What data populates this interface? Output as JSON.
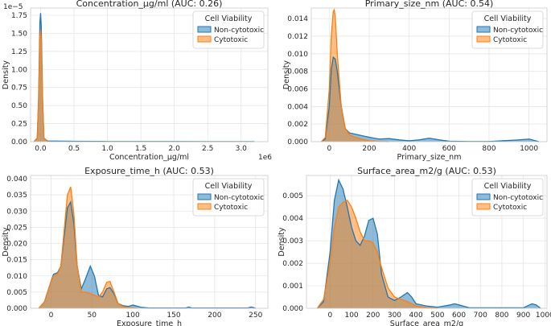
{
  "figure": {
    "legend_title": "Cell Viability",
    "colors": {
      "non_cytotoxic": "#1f77b4",
      "cytotoxic": "#ff7f0e",
      "overlap": "#8c8c8c"
    }
  },
  "chart_data": [
    {
      "type": "area",
      "title": "Concentration_µg/ml (AUC: 0.26)",
      "xlabel": "Concentration_µg/ml",
      "ylabel": "Density",
      "y_scale_label": "1e−5",
      "x_scale_label": "1e6",
      "xlim": [
        -150000,
        3400000
      ],
      "ylim": [
        0,
        1.85
      ],
      "x_ticks": [
        0,
        500000,
        1000000,
        1500000,
        2000000,
        2500000,
        3000000
      ],
      "x_tick_labels": [
        "0.0",
        "0.5",
        "1.0",
        "1.5",
        "2.0",
        "2.5",
        "3.0"
      ],
      "y_ticks": [
        0,
        0.25,
        0.5,
        0.75,
        1.0,
        1.25,
        1.5,
        1.75
      ],
      "y_tick_labels": [
        "0.00",
        "0.25",
        "0.50",
        "0.75",
        "1.00",
        "1.25",
        "1.50",
        "1.75"
      ],
      "legend": {
        "loc": "upper right",
        "entries": [
          "Non-cytotoxic",
          "Cytotoxic"
        ]
      },
      "grid": true,
      "series": [
        {
          "name": "Non-cytotoxic",
          "color": "#1f77b4",
          "x": [
            -100000,
            -50000,
            -30000,
            -10000,
            0,
            10000,
            30000,
            50000,
            100000,
            500000,
            1000000,
            2000000,
            3200000
          ],
          "y": [
            0,
            0.05,
            0.6,
            1.65,
            1.78,
            1.6,
            0.6,
            0.05,
            0.01,
            0.005,
            0.003,
            0.002,
            0.001
          ]
        },
        {
          "name": "Cytotoxic",
          "color": "#ff7f0e",
          "x": [
            -100000,
            -50000,
            -30000,
            -10000,
            0,
            10000,
            30000,
            50000,
            100000
          ],
          "y": [
            0,
            0.05,
            0.55,
            1.45,
            1.55,
            1.4,
            0.55,
            0.05,
            0
          ]
        }
      ]
    },
    {
      "type": "area",
      "title": "Primary_size_nm (AUC: 0.54)",
      "xlabel": "Primary_size_nm",
      "ylabel": "Density",
      "xlim": [
        -90,
        1090
      ],
      "ylim": [
        0,
        0.0152
      ],
      "x_ticks": [
        0,
        200,
        400,
        600,
        800,
        1000
      ],
      "x_tick_labels": [
        "0",
        "200",
        "400",
        "600",
        "800",
        "1000"
      ],
      "y_ticks": [
        0,
        0.002,
        0.004,
        0.006,
        0.008,
        0.01,
        0.012,
        0.014
      ],
      "y_tick_labels": [
        "0.000",
        "0.002",
        "0.004",
        "0.006",
        "0.008",
        "0.010",
        "0.012",
        "0.014"
      ],
      "legend": {
        "loc": "upper right",
        "entries": [
          "Non-cytotoxic",
          "Cytotoxic"
        ]
      },
      "grid": true,
      "series": [
        {
          "name": "Non-cytotoxic",
          "color": "#1f77b4",
          "x": [
            -40,
            -20,
            0,
            10,
            20,
            30,
            40,
            60,
            80,
            100,
            120,
            140,
            160,
            200,
            250,
            300,
            350,
            400,
            450,
            500,
            550,
            600,
            700,
            800,
            950,
            1000,
            1050
          ],
          "y": [
            0,
            0.0003,
            0.004,
            0.0082,
            0.0096,
            0.0094,
            0.008,
            0.004,
            0.0015,
            0.001,
            0.0009,
            0.0008,
            0.0007,
            0.0005,
            0.0003,
            0.00035,
            0.0002,
            0.0001,
            0.0002,
            0.0004,
            0.0002,
            5e-05,
            2e-05,
            2e-05,
            0.0002,
            0.0003,
            0
          ]
        },
        {
          "name": "Cytotoxic",
          "color": "#ff7f0e",
          "x": [
            -40,
            -20,
            0,
            10,
            20,
            25,
            30,
            40,
            60,
            80,
            100,
            130,
            160,
            200,
            250,
            300
          ],
          "y": [
            0,
            0.0005,
            0.006,
            0.012,
            0.0148,
            0.015,
            0.0142,
            0.01,
            0.004,
            0.0015,
            0.0008,
            0.0005,
            0.0003,
            0.0001,
            2e-05,
            0
          ]
        }
      ]
    },
    {
      "type": "area",
      "title": "Exposure_time_h (AUC: 0.53)",
      "xlabel": "Exposure_time_h",
      "ylabel": "Density",
      "xlim": [
        -25,
        265
      ],
      "ylim": [
        0,
        0.041
      ],
      "x_ticks": [
        0,
        50,
        100,
        150,
        200,
        250
      ],
      "x_tick_labels": [
        "0",
        "50",
        "100",
        "150",
        "200",
        "250"
      ],
      "y_ticks": [
        0,
        0.005,
        0.01,
        0.015,
        0.02,
        0.025,
        0.03,
        0.035,
        0.04
      ],
      "y_tick_labels": [
        "0.000",
        "0.005",
        "0.010",
        "0.015",
        "0.020",
        "0.025",
        "0.030",
        "0.035",
        "0.040"
      ],
      "legend": {
        "loc": "upper right",
        "entries": [
          "Non-cytotoxic",
          "Cytotoxic"
        ]
      },
      "grid": true,
      "series": [
        {
          "name": "Non-cytotoxic",
          "color": "#1f77b4",
          "x": [
            -15,
            -8,
            -3,
            3,
            8,
            12,
            16,
            20,
            24,
            28,
            32,
            37,
            42,
            48,
            53,
            58,
            63,
            68,
            72,
            77,
            82,
            88,
            95,
            100,
            110,
            120,
            165,
            168,
            172,
            240,
            245,
            250
          ],
          "y": [
            0,
            0.002,
            0.006,
            0.0105,
            0.011,
            0.013,
            0.022,
            0.031,
            0.0328,
            0.026,
            0.013,
            0.006,
            0.009,
            0.013,
            0.01,
            0.004,
            0.0035,
            0.006,
            0.0064,
            0.0045,
            0.0015,
            0.0008,
            0.0006,
            0.001,
            0.0003,
            0.0001,
            0.0001,
            0.0004,
            0.0001,
            0.0001,
            0.0004,
            0
          ]
        },
        {
          "name": "Cytotoxic",
          "color": "#ff7f0e",
          "x": [
            -15,
            -8,
            -3,
            3,
            8,
            12,
            16,
            20,
            24,
            28,
            32,
            37,
            42,
            48,
            53,
            58,
            63,
            68,
            72,
            77,
            82,
            88,
            95,
            105
          ],
          "y": [
            0,
            0.002,
            0.006,
            0.01,
            0.0105,
            0.013,
            0.024,
            0.035,
            0.0375,
            0.029,
            0.013,
            0.005,
            0.005,
            0.0045,
            0.004,
            0.0035,
            0.005,
            0.008,
            0.0083,
            0.005,
            0.0015,
            0.0005,
            0.0002,
            0
          ]
        }
      ]
    },
    {
      "type": "area",
      "title": "Surface_area_m2/g (AUC: 0.53)",
      "xlabel": "Surface_area_m2/g",
      "ylabel": "Density",
      "xlim": [
        -110,
        1010
      ],
      "ylim": [
        0,
        0.0059
      ],
      "x_ticks": [
        0,
        100,
        200,
        300,
        400,
        500,
        600,
        700,
        800,
        900,
        1000
      ],
      "x_tick_labels": [
        "0",
        "100",
        "200",
        "300",
        "400",
        "500",
        "600",
        "700",
        "800",
        "900",
        "1000"
      ],
      "y_ticks": [
        0,
        0.001,
        0.002,
        0.003,
        0.004,
        0.005
      ],
      "y_tick_labels": [
        "0.000",
        "0.001",
        "0.002",
        "0.003",
        "0.004",
        "0.005"
      ],
      "legend": {
        "loc": "upper right",
        "entries": [
          "Non-cytotoxic",
          "Cytotoxic"
        ]
      },
      "grid": true,
      "series": [
        {
          "name": "Non-cytotoxic",
          "color": "#1f77b4",
          "x": [
            -60,
            -30,
            0,
            20,
            40,
            60,
            80,
            100,
            120,
            140,
            160,
            180,
            200,
            220,
            240,
            270,
            300,
            330,
            360,
            380,
            400,
            450,
            500,
            560,
            580,
            600,
            650,
            900,
            940,
            960,
            980
          ],
          "y": [
            0,
            0.0003,
            0.0025,
            0.0048,
            0.0057,
            0.0053,
            0.0045,
            0.0036,
            0.003,
            0.0028,
            0.0032,
            0.0039,
            0.004,
            0.0033,
            0.0015,
            0.0005,
            0.00035,
            0.0005,
            0.0007,
            0.0005,
            0.0002,
            0.0001,
            5e-05,
            0.00015,
            0.0002,
            0.00015,
            2e-05,
            2e-05,
            0.0002,
            0.00015,
            0
          ]
        },
        {
          "name": "Cytotoxic",
          "color": "#ff7f0e",
          "x": [
            -60,
            -30,
            0,
            20,
            40,
            60,
            80,
            100,
            120,
            140,
            160,
            180,
            200,
            220,
            240,
            270,
            300,
            330,
            360,
            400,
            450,
            500
          ],
          "y": [
            0,
            0.0004,
            0.002,
            0.0036,
            0.0045,
            0.0047,
            0.0048,
            0.0045,
            0.004,
            0.0034,
            0.003,
            0.003,
            0.0029,
            0.0025,
            0.0018,
            0.0009,
            0.0005,
            0.0004,
            0.0003,
            0.0001,
            3e-05,
            0
          ]
        }
      ]
    }
  ]
}
